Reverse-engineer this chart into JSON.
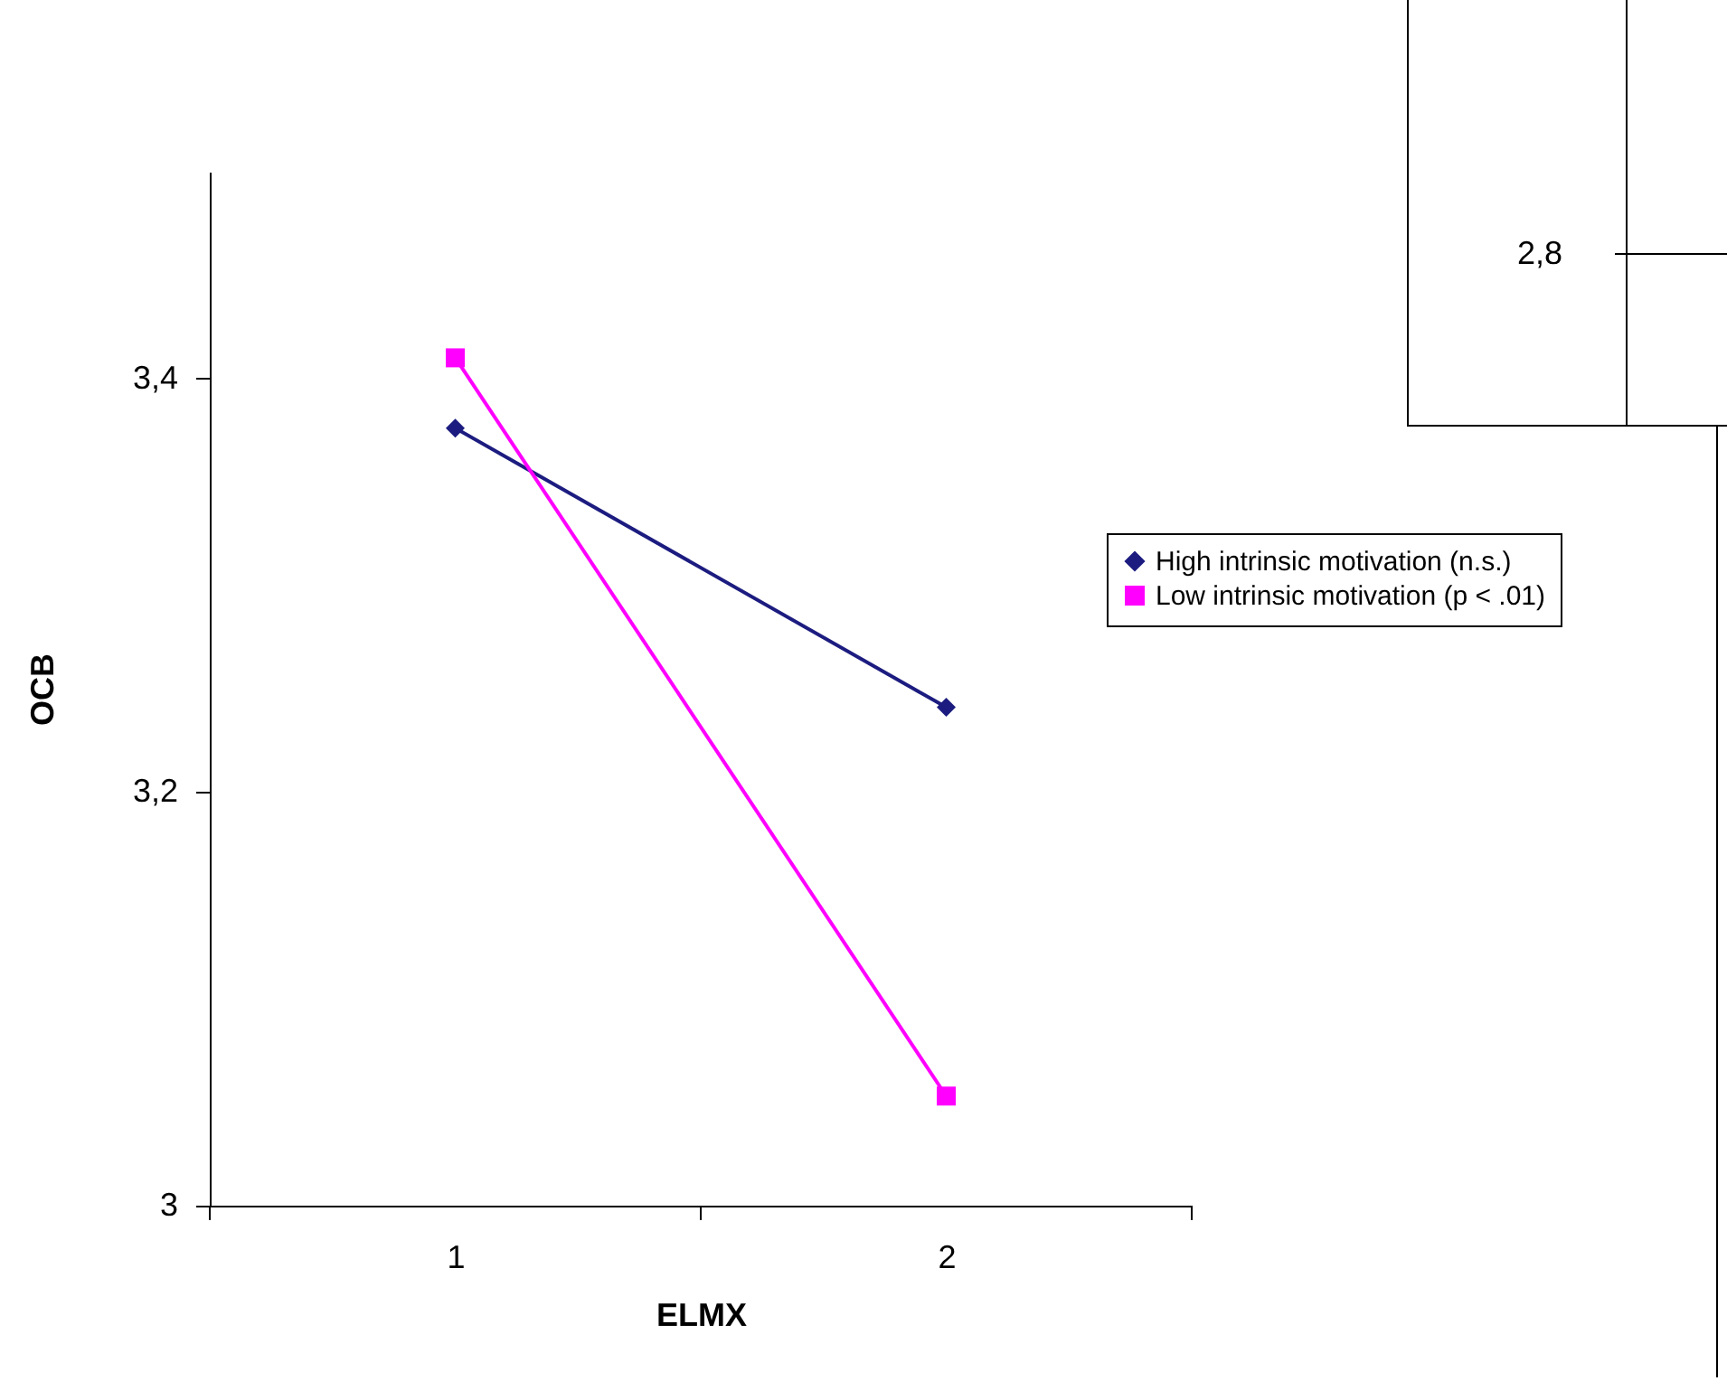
{
  "chart_data": {
    "type": "line",
    "xlabel": "ELMX",
    "ylabel": "OCB",
    "categories": [
      "1",
      "2"
    ],
    "series": [
      {
        "name": "High intrinsic motivation (n.s.)",
        "color": "#1c1c80",
        "values": [
          3.376,
          3.241
        ],
        "marker": "diamond"
      },
      {
        "name": "Low intrinsic motivation (p < .01)",
        "color": "#ff00ff",
        "values": [
          3.41,
          3.053
        ],
        "marker": "square"
      }
    ],
    "ylim": [
      3,
      3.5
    ],
    "yticks": [
      3,
      {
        "value": 3.2,
        "label": "3,2"
      },
      {
        "value": 3.4,
        "label": "3,4"
      }
    ],
    "grid": false,
    "legend": "right",
    "annotations": [
      "2,8"
    ]
  }
}
